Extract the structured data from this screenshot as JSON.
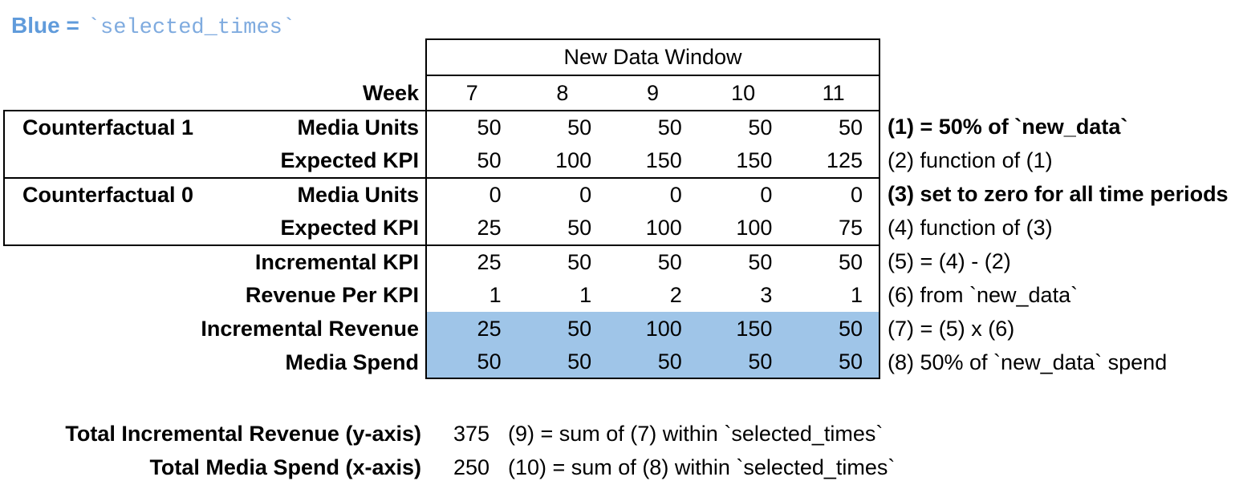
{
  "legend": {
    "prefix": "Blue =",
    "code": "`selected_times`"
  },
  "colors": {
    "highlight": "#9FC5E8",
    "legend-text": "#609BDB",
    "legend-code": "#7FABDF"
  },
  "table": {
    "header": "New Data Window",
    "week_label": "Week",
    "weeks": [
      "7",
      "8",
      "9",
      "10",
      "11"
    ],
    "rows": [
      {
        "group": "Counterfactual 1",
        "label": "Media Units",
        "values": [
          "50",
          "50",
          "50",
          "50",
          "50"
        ],
        "note": "(1) = 50% of `new_data`"
      },
      {
        "group": "",
        "label": "Expected KPI",
        "values": [
          "50",
          "100",
          "150",
          "150",
          "125"
        ],
        "note": "(2) function of (1)"
      },
      {
        "group": "Counterfactual 0",
        "label": "Media Units",
        "values": [
          "0",
          "0",
          "0",
          "0",
          "0"
        ],
        "note": "(3) set to zero for all time periods"
      },
      {
        "group": "",
        "label": "Expected KPI",
        "values": [
          "25",
          "50",
          "100",
          "100",
          "75"
        ],
        "note": "(4) function of (3)"
      },
      {
        "group": "",
        "label": "Incremental KPI",
        "values": [
          "25",
          "50",
          "50",
          "50",
          "50"
        ],
        "note": "(5) = (4) - (2)"
      },
      {
        "group": "",
        "label": "Revenue Per KPI",
        "values": [
          "1",
          "1",
          "2",
          "3",
          "1"
        ],
        "note": "(6) from `new_data`"
      },
      {
        "group": "",
        "label": "Incremental Revenue",
        "values": [
          "25",
          "50",
          "100",
          "150",
          "50"
        ],
        "note": "(7) = (5) x (6)"
      },
      {
        "group": "",
        "label": "Media Spend",
        "values": [
          "50",
          "50",
          "50",
          "50",
          "50"
        ],
        "note": "(8) 50% of `new_data` spend"
      }
    ]
  },
  "totals": [
    {
      "label": "Total Incremental Revenue (y-axis)",
      "value": "375",
      "note": "(9) = sum of (7) within `selected_times`"
    },
    {
      "label": "Total Media Spend (x-axis)",
      "value": "250",
      "note": "(10) = sum of (8) within `selected_times`"
    }
  ]
}
